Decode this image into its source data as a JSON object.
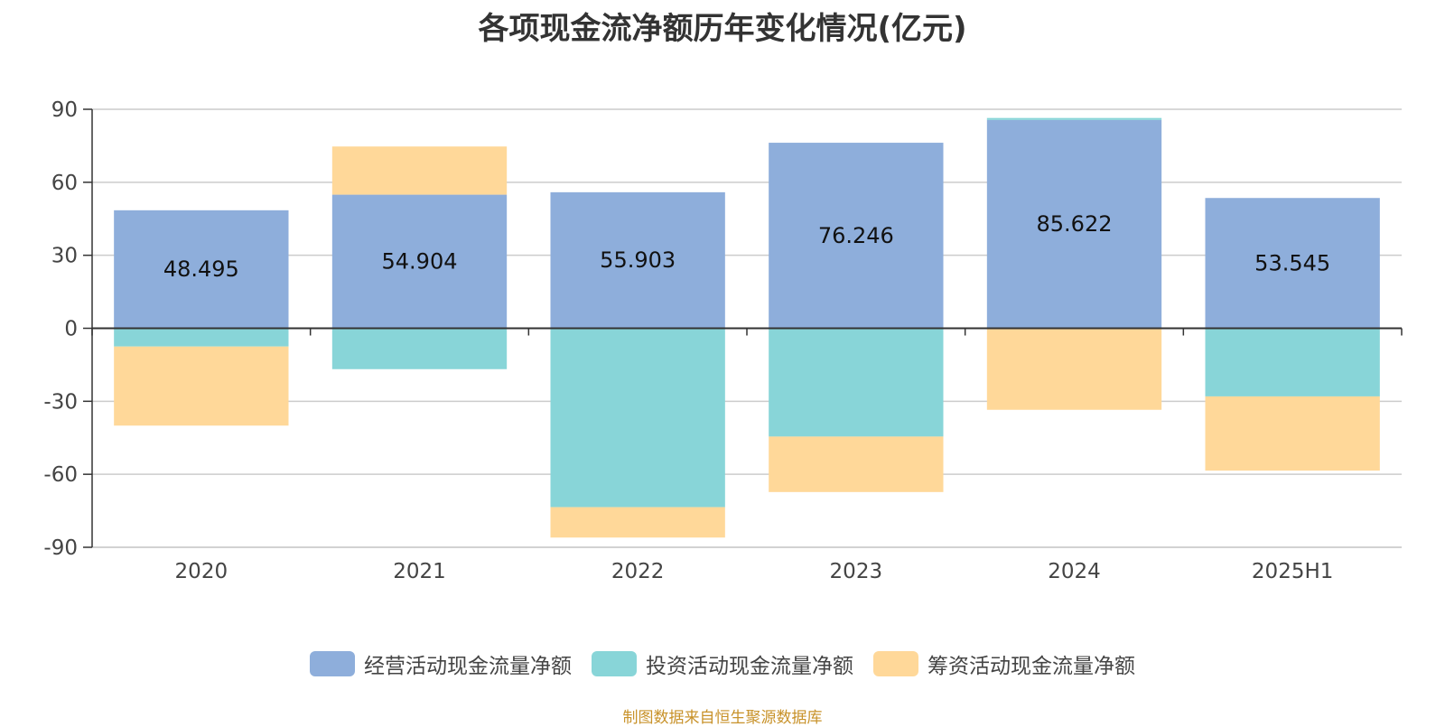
{
  "chart_data": {
    "type": "bar",
    "stacked": true,
    "title": "各项现金流净额历年变化情况(亿元)",
    "categories": [
      "2020",
      "2021",
      "2022",
      "2023",
      "2024",
      "2025H1"
    ],
    "ylim": [
      -90,
      90
    ],
    "yticks": [
      90,
      60,
      30,
      0,
      -30,
      -60,
      -90
    ],
    "grid": true,
    "legend_position": "bottom",
    "series": [
      {
        "name": "经营活动现金流量净额",
        "color": "#8eaedb",
        "values": [
          48.495,
          54.904,
          55.903,
          76.246,
          85.622,
          53.545
        ],
        "labels": [
          "48.495",
          "54.904",
          "55.903",
          "76.246",
          "85.622",
          "53.545"
        ]
      },
      {
        "name": "投资活动现金流量净额",
        "color": "#88d5d8",
        "values": [
          -7.5,
          -16.8,
          -73.5,
          -44.5,
          0.8,
          -28.0
        ]
      },
      {
        "name": "筹资活动现金流量净额",
        "color": "#ffd899",
        "values": [
          -32.5,
          19.8,
          -12.5,
          -22.8,
          -33.5,
          -30.5
        ]
      }
    ],
    "source": "制图数据来自恒生聚源数据库"
  }
}
